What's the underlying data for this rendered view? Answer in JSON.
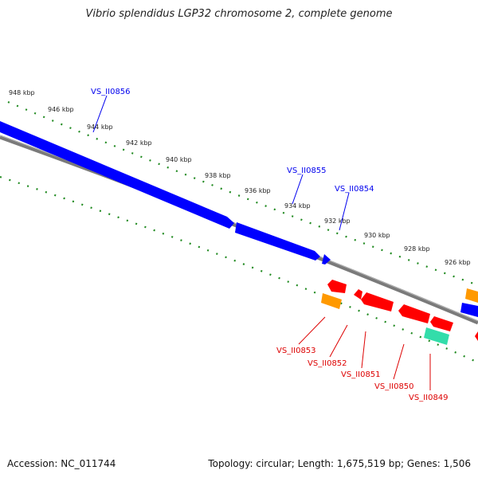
{
  "title": "Vibrio splendidus LGP32 chromosome 2, complete genome",
  "footer": {
    "accession": "Accession: NC_011744",
    "summary": "Topology: circular; Length: 1,675,519 bp; Genes: 1,506"
  },
  "ticks": [
    {
      "label": "948 kbp",
      "kbp": 948
    },
    {
      "label": "946 kbp",
      "kbp": 946
    },
    {
      "label": "944 kbp",
      "kbp": 944
    },
    {
      "label": "942 kbp",
      "kbp": 942
    },
    {
      "label": "940 kbp",
      "kbp": 940
    },
    {
      "label": "938 kbp",
      "kbp": 938
    },
    {
      "label": "936 kbp",
      "kbp": 936
    },
    {
      "label": "934 kbp",
      "kbp": 934
    },
    {
      "label": "932 kbp",
      "kbp": 932
    },
    {
      "label": "930 kbp",
      "kbp": 930
    },
    {
      "label": "928 kbp",
      "kbp": 928
    },
    {
      "label": "926 kbp",
      "kbp": 926
    }
  ],
  "genes_forward": [
    {
      "label": "VS_II0856",
      "color": "#0000ee"
    },
    {
      "label": "VS_II0855",
      "color": "#0000ee"
    },
    {
      "label": "VS_II0854",
      "color": "#0000ee"
    }
  ],
  "genes_reverse": [
    {
      "label": "VS_II0853",
      "color": "#dd0000"
    },
    {
      "label": "VS_II0852",
      "color": "#dd0000"
    },
    {
      "label": "VS_II0851",
      "color": "#dd0000"
    },
    {
      "label": "VS_II0850",
      "color": "#dd0000"
    },
    {
      "label": "VS_II0849",
      "color": "#dd0000"
    }
  ],
  "colors": {
    "forward_cds": "#0000ff",
    "reverse_cds": "#ff0000",
    "orange_feature": "#ff9900",
    "teal_feature": "#33ddaa",
    "backbone": "#808080",
    "tick_marks": "#228b22"
  }
}
